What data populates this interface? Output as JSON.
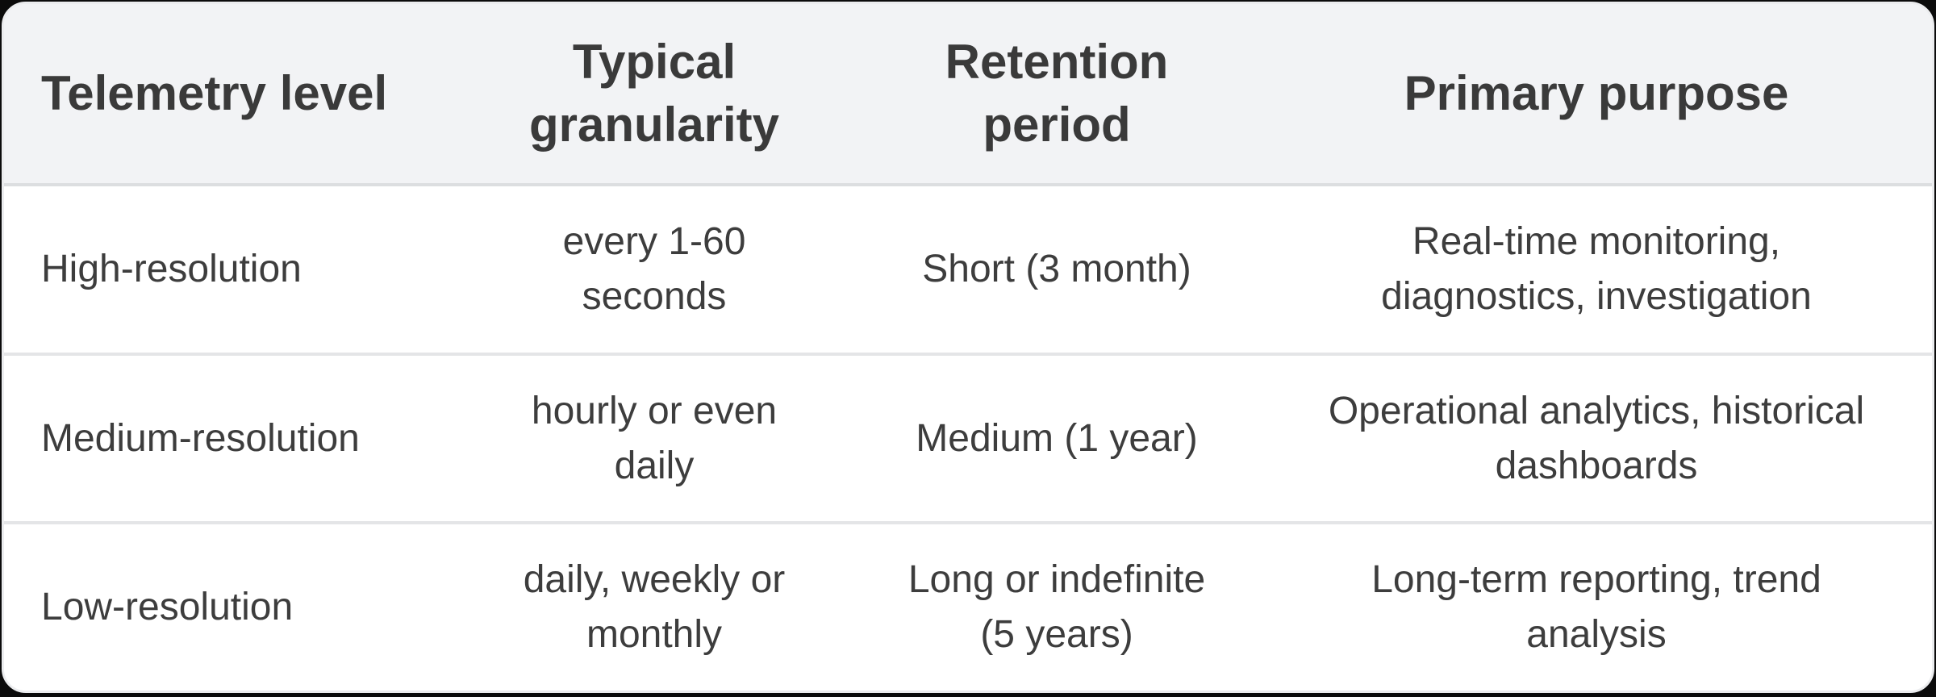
{
  "colors": {
    "page_background": "#0b0b0b",
    "card_background": "#ffffff",
    "header_background": "#f2f3f5",
    "header_divider": "#dcdee0",
    "row_divider": "#e4e5e7",
    "card_border": "#ecedef",
    "text": "#3d3d3d"
  },
  "table": {
    "headers": [
      "Telemetry level",
      "Typical\ngranularity",
      "Retention\nperiod",
      "Primary purpose"
    ],
    "rows": [
      {
        "cells": [
          "High-resolution",
          "every 1-60\nseconds",
          "Short (3 month)",
          "Real-time monitoring,\ndiagnostics, investigation"
        ]
      },
      {
        "cells": [
          "Medium-resolution",
          "hourly or even\ndaily",
          "Medium (1 year)",
          "Operational analytics, historical\ndashboards"
        ]
      },
      {
        "cells": [
          "Low-resolution",
          "daily, weekly or\nmonthly",
          "Long or indefinite\n(5 years)",
          "Long-term reporting, trend\nanalysis"
        ]
      }
    ]
  },
  "chart_data": {
    "type": "table",
    "columns": [
      "Telemetry level",
      "Typical granularity",
      "Retention period",
      "Primary purpose"
    ],
    "rows": [
      [
        "High-resolution",
        "every 1-60 seconds",
        "Short (3 month)",
        "Real-time monitoring, diagnostics, investigation"
      ],
      [
        "Medium-resolution",
        "hourly or even daily",
        "Medium (1 year)",
        "Operational analytics, historical dashboards"
      ],
      [
        "Low-resolution",
        "daily, weekly or monthly",
        "Long or indefinite (5 years)",
        "Long-term reporting, trend analysis"
      ]
    ]
  }
}
